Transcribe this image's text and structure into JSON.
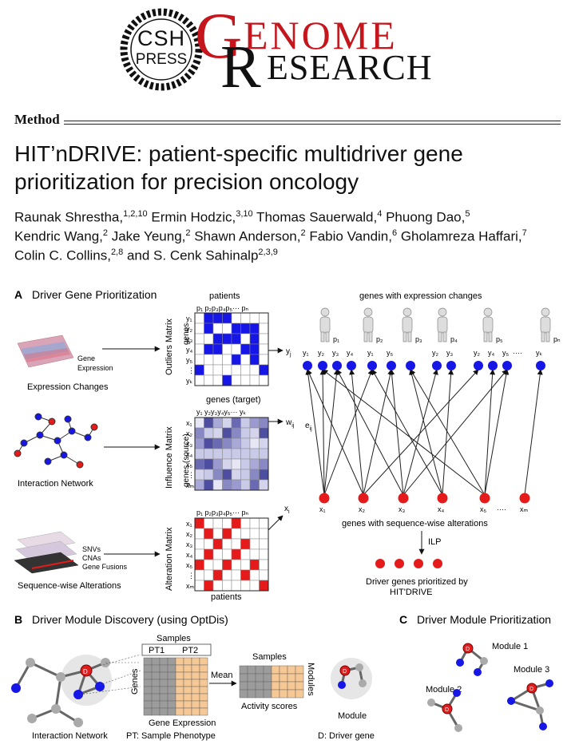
{
  "header": {
    "publisher_line1": "CSH",
    "publisher_line2": "PRESS",
    "journal_word1": "GENOME",
    "journal_word2": "RESEARCH",
    "journal_word1_rest": "ENOME",
    "journal_word2_rest": "ESEARCH",
    "journal_initial1": "G",
    "journal_initial2": "R"
  },
  "article": {
    "section": "Method",
    "title_line1": "HIT’nDRIVE: patient-specific multidriver gene",
    "title_line2": "prioritization for precision oncology",
    "authors_line1": [
      {
        "name": "Raunak Shrestha,",
        "sup": "1,2,10"
      },
      {
        "name": " Ermin Hodzic,",
        "sup": "3,10"
      },
      {
        "name": " Thomas Sauerwald,",
        "sup": "4"
      },
      {
        "name": " Phuong Dao,",
        "sup": "5"
      }
    ],
    "authors_line2": [
      {
        "name": "Kendric Wang,",
        "sup": "2"
      },
      {
        "name": " Jake Yeung,",
        "sup": "2"
      },
      {
        "name": " Shawn Anderson,",
        "sup": "2"
      },
      {
        "name": " Fabio Vandin,",
        "sup": "6"
      },
      {
        "name": " Gholamreza Haffari,",
        "sup": "7"
      }
    ],
    "authors_line3": [
      {
        "name": "Colin C. Collins,",
        "sup": "2,8"
      },
      {
        "name": " and S. Cenk Sahinalp",
        "sup": "2,3,9"
      }
    ]
  },
  "figure": {
    "panelA": {
      "letter": "A",
      "title": "Driver Gene Prioritization",
      "expr_label": "Expression Changes",
      "gene_expression_1": "Gene",
      "gene_expression_2": "Expression",
      "interaction_label": "Interaction Network",
      "seq_label": "Sequence-wise Alterations",
      "snv": "SNVs",
      "cna": "CNAs",
      "fusion": "Gene Fusions",
      "patients_top": "patients",
      "patients_bottom": "patients",
      "outliers_matrix": "Outliers Matrix",
      "influence_matrix": "Influence Matrix",
      "alteration_matrix": "Alteration Matrix",
      "genes": "genes",
      "genes_source": "genes (source)",
      "genes_target": "genes (target)",
      "yj": "y",
      "yj_sub": "j",
      "wij": "w",
      "wij_sub": "ij",
      "xi": "x",
      "xi_sub": "i",
      "eij": "e",
      "eij_sub": "ij",
      "genes_expr_changes": "genes with expression changes",
      "genes_seq_alter": "genes with sequence-wise alterations",
      "ilp": "ILP",
      "driver_line1": "Driver genes prioritized by",
      "driver_line2": "HIT'DRIVE",
      "ellipsis": "····"
    },
    "panelB": {
      "letter": "B",
      "title": "Driver Module Discovery (using OptDis)",
      "samples1": "Samples",
      "pt1": "PT1",
      "pt2": "PT2",
      "genes": "Genes",
      "gene_expression": "Gene Expression",
      "mean": "Mean",
      "samples2": "Samples",
      "modules": "Modules",
      "activity": "Activity scores",
      "module": "Module",
      "interaction": "Interaction Network",
      "pt_note": "PT: Sample Phenotype",
      "d_note": "D: Driver gene",
      "d": "D"
    },
    "panelC": {
      "letter": "C",
      "title": "Driver Module Prioritization",
      "module1": "Module 1",
      "module2": "Module 2",
      "module3": "Module 3",
      "d": "D"
    },
    "colors": {
      "blue": "#1616e6",
      "red": "#e51a1a",
      "purple": "#5c5cb0",
      "orange": "#f5c896",
      "grey": "#9a9a9a",
      "journal_red": "#c4161c"
    }
  }
}
